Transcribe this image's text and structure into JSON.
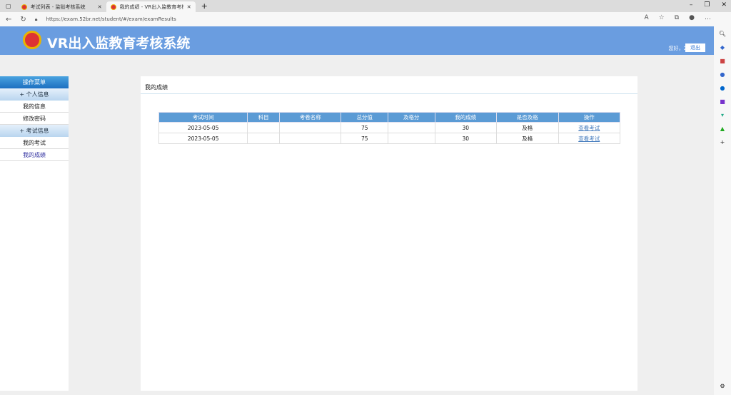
{
  "browser": {
    "tabs": [
      {
        "label": "考试列表 - 监狱考核系统",
        "active": false
      },
      {
        "label": "我的成绩 - VR出入监教育考核系统",
        "active": true
      }
    ],
    "url": "https://exam.52br.net/student/#/exam/examResults"
  },
  "header": {
    "title": "VR出入监教育考核系统",
    "greeting": "您好，3",
    "logout": "退出"
  },
  "menu": {
    "title": "操作菜单",
    "groups": [
      {
        "label": "+ 个人信息",
        "items": [
          "我的信息",
          "修改密码"
        ]
      },
      {
        "label": "+ 考试信息",
        "items": [
          "我的考试",
          "我的成绩"
        ]
      }
    ],
    "current": "我的成绩"
  },
  "page": {
    "title": "我的成绩"
  },
  "table": {
    "headers": [
      "考试时间",
      "科目",
      "考卷名称",
      "总分值",
      "及格分",
      "我的成绩",
      "是否及格",
      "操作"
    ],
    "rows": [
      [
        "2023-05-05",
        "",
        "",
        "75",
        "",
        "30",
        "及格",
        "查看考试"
      ],
      [
        "2023-05-05",
        "",
        "",
        "75",
        "",
        "30",
        "及格",
        "查看考试"
      ]
    ]
  },
  "colors": {
    "header_bg": "#6a9de0",
    "table_header": "#5b9bd5",
    "link": "#4a7fbf"
  }
}
